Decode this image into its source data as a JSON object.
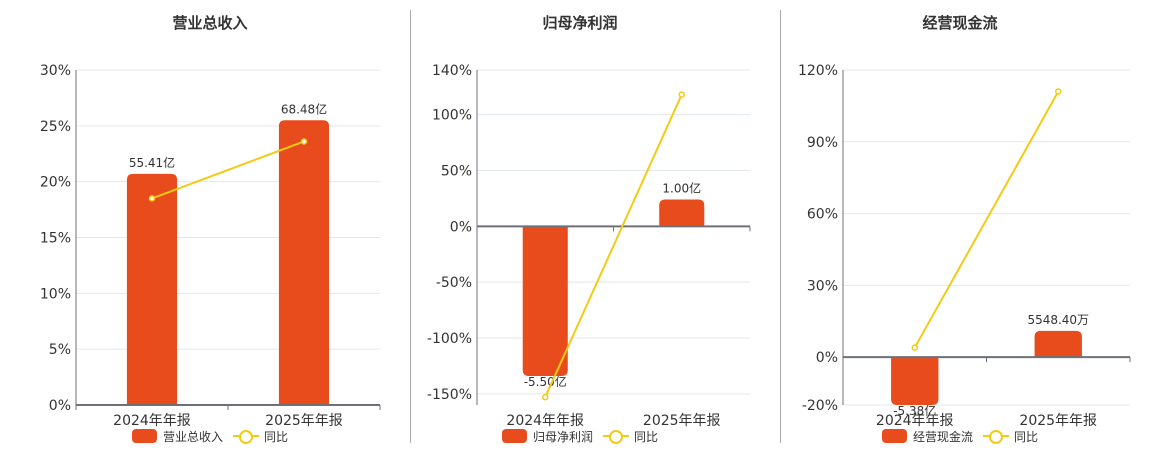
{
  "colors": {
    "bar": "#e84c1c",
    "line": "#f3cb13",
    "grid": "#e3e8ef",
    "axis": "#6e7079",
    "text": "#333333",
    "divider": "#a9a9a9"
  },
  "panels": [
    {
      "title": "营业总收入",
      "legend": {
        "bar_label": "营业总收入",
        "line_label": "同比"
      }
    },
    {
      "title": "归母净利润",
      "legend": {
        "bar_label": "归母净利润",
        "line_label": "同比"
      }
    },
    {
      "title": "经营现金流",
      "legend": {
        "bar_label": "经营现金流",
        "line_label": "同比"
      }
    }
  ],
  "chart_data": [
    {
      "type": "bar",
      "title": "营业总收入",
      "categories": [
        "2024年年报",
        "2025年年报"
      ],
      "series": [
        {
          "name": "营业总收入",
          "type": "bar",
          "values": [
            20.7,
            25.5
          ],
          "labels": [
            "55.41亿",
            "68.48亿"
          ]
        },
        {
          "name": "同比",
          "type": "line",
          "values": [
            18.5,
            23.6
          ]
        }
      ],
      "yticks": [
        "0%",
        "5%",
        "10%",
        "15%",
        "20%",
        "25%",
        "30%"
      ],
      "ylim": [
        0,
        30
      ],
      "grid": true,
      "legend_position": "bottom"
    },
    {
      "type": "bar",
      "title": "归母净利润",
      "categories": [
        "2024年年报",
        "2025年年报"
      ],
      "series": [
        {
          "name": "归母净利润",
          "type": "bar",
          "values": [
            -134,
            24
          ],
          "labels": [
            "-5.50亿",
            "1.00亿"
          ]
        },
        {
          "name": "同比",
          "type": "line",
          "values": [
            -153,
            118
          ]
        }
      ],
      "yticks": [
        "-150%",
        "-100%",
        "-50%",
        "0%",
        "50%",
        "100%",
        "140%"
      ],
      "ylim": [
        -160,
        140
      ],
      "grid": true,
      "legend_position": "bottom"
    },
    {
      "type": "bar",
      "title": "经营现金流",
      "categories": [
        "2024年年报",
        "2025年年报"
      ],
      "series": [
        {
          "name": "经营现金流",
          "type": "bar",
          "values": [
            -20,
            11
          ],
          "labels": [
            "-5.38亿",
            "5548.40万"
          ]
        },
        {
          "name": "同比",
          "type": "line",
          "values": [
            4,
            111
          ]
        }
      ],
      "yticks": [
        "-20%",
        "0%",
        "30%",
        "60%",
        "90%",
        "120%"
      ],
      "ylim": [
        -20,
        120
      ],
      "grid": true,
      "legend_position": "bottom"
    }
  ]
}
